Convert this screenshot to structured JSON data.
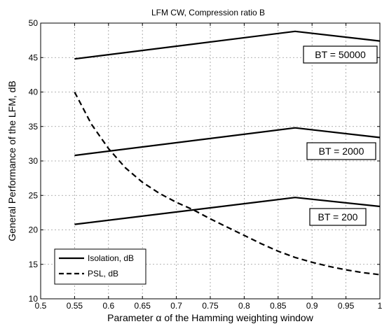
{
  "chart_data": {
    "type": "line",
    "title": "LFM CW, Compression ratio B",
    "xlabel": "Parameter α of the Hamming weighting window",
    "ylabel": "General Performance of the LFM, dB",
    "xlim": [
      0.5,
      1.0
    ],
    "ylim": [
      10,
      50
    ],
    "xticks": [
      "0.5",
      "0.55",
      "0.6",
      "0.65",
      "0.7",
      "0.75",
      "0.8",
      "0.85",
      "0.9",
      "0.95",
      "1"
    ],
    "yticks": [
      "10",
      "15",
      "20",
      "25",
      "30",
      "35",
      "40",
      "45",
      "50"
    ],
    "grid": true,
    "legend_position": "bottom-left",
    "legend": [
      {
        "label": "Isolation, dB",
        "style": "solid"
      },
      {
        "label": "PSL, dB",
        "style": "dashed"
      }
    ],
    "series": [
      {
        "group": "Isolation, dB",
        "annotation": "BT = 50000",
        "style": "solid",
        "x": [
          0.55,
          0.875,
          1.0
        ],
        "y": [
          44.8,
          48.8,
          47.4
        ]
      },
      {
        "group": "Isolation, dB",
        "annotation": "BT = 2000",
        "style": "solid",
        "x": [
          0.55,
          0.875,
          1.0
        ],
        "y": [
          30.8,
          34.8,
          33.4
        ]
      },
      {
        "group": "Isolation, dB",
        "annotation": "BT = 200",
        "style": "solid",
        "x": [
          0.55,
          0.875,
          1.0
        ],
        "y": [
          20.8,
          24.7,
          23.4
        ]
      },
      {
        "group": "PSL, dB",
        "style": "dashed",
        "x": [
          0.55,
          0.575,
          0.6,
          0.625,
          0.65,
          0.675,
          0.7,
          0.725,
          0.75,
          0.775,
          0.8,
          0.825,
          0.85,
          0.875,
          0.9,
          0.925,
          0.95,
          0.975,
          1.0
        ],
        "y": [
          40.0,
          35.3,
          31.8,
          29.0,
          26.9,
          25.3,
          24.0,
          22.9,
          21.6,
          20.4,
          19.2,
          18.0,
          16.9,
          16.0,
          15.3,
          14.7,
          14.2,
          13.8,
          13.5
        ]
      }
    ],
    "annotations": [
      "BT = 50000",
      "BT = 2000",
      "BT = 200"
    ]
  }
}
